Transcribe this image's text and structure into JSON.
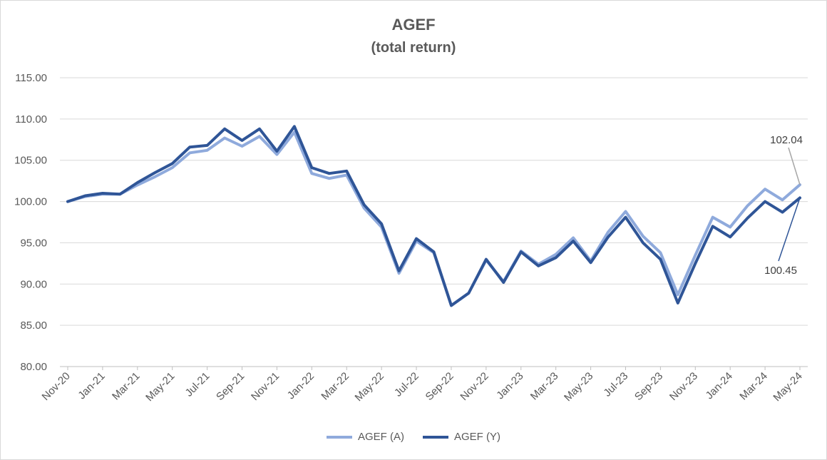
{
  "chart_data": {
    "type": "line",
    "title": "AGEF",
    "subtitle": "(total return)",
    "ylim": [
      80,
      115
    ],
    "yticks": [
      "80.00",
      "85.00",
      "90.00",
      "95.00",
      "100.00",
      "105.00",
      "110.00",
      "115.00"
    ],
    "grid": true,
    "legend_position": "bottom",
    "x": [
      "Nov-20",
      "Dec-20",
      "Jan-21",
      "Feb-21",
      "Mar-21",
      "Apr-21",
      "May-21",
      "Jun-21",
      "Jul-21",
      "Aug-21",
      "Sep-21",
      "Oct-21",
      "Nov-21",
      "Dec-21",
      "Jan-22",
      "Feb-22",
      "Mar-22",
      "Apr-22",
      "May-22",
      "Jun-22",
      "Jul-22",
      "Aug-22",
      "Sep-22",
      "Oct-22",
      "Nov-22",
      "Dec-22",
      "Jan-23",
      "Feb-23",
      "Mar-23",
      "Apr-23",
      "May-23",
      "Jun-23",
      "Jul-23",
      "Aug-23",
      "Sep-23",
      "Oct-23",
      "Nov-23",
      "Dec-23",
      "Jan-24",
      "Feb-24",
      "Mar-24",
      "Apr-24",
      "May-24"
    ],
    "xtick_labels": [
      "Nov-20",
      "Jan-21",
      "Mar-21",
      "May-21",
      "Jul-21",
      "Sep-21",
      "Nov-21",
      "Jan-22",
      "Mar-22",
      "May-22",
      "Jul-22",
      "Sep-22",
      "Nov-22",
      "Jan-23",
      "Mar-23",
      "May-23",
      "Jul-23",
      "Sep-23",
      "Nov-23",
      "Jan-24",
      "Mar-24",
      "May-24"
    ],
    "series": [
      {
        "name": "AGEF (A)",
        "color": "#8faadc",
        "values": [
          100.0,
          100.6,
          100.9,
          100.9,
          102.0,
          103.0,
          104.1,
          105.9,
          106.2,
          107.7,
          106.7,
          107.9,
          105.7,
          108.4,
          103.4,
          102.8,
          103.2,
          99.2,
          96.9,
          91.3,
          95.2,
          93.8,
          87.4,
          88.9,
          92.9,
          90.3,
          94.0,
          92.4,
          93.6,
          95.6,
          92.8,
          96.3,
          98.8,
          95.8,
          93.8,
          88.7,
          93.5,
          98.1,
          96.9,
          99.5,
          101.5,
          100.2,
          102.04
        ]
      },
      {
        "name": "AGEF (Y)",
        "color": "#2f5597",
        "values": [
          100.0,
          100.7,
          101.0,
          100.9,
          102.3,
          103.5,
          104.6,
          106.6,
          106.8,
          108.8,
          107.4,
          108.8,
          106.1,
          109.1,
          104.1,
          103.4,
          103.7,
          99.6,
          97.3,
          91.6,
          95.5,
          93.9,
          87.4,
          88.9,
          93.0,
          90.2,
          93.9,
          92.2,
          93.2,
          95.2,
          92.6,
          95.7,
          98.1,
          95.0,
          93.0,
          87.7,
          92.5,
          97.0,
          95.7,
          98.0,
          100.0,
          98.7,
          100.45
        ]
      }
    ],
    "annotations": [
      {
        "text": "102.04",
        "series": 0,
        "point": 42
      },
      {
        "text": "100.45",
        "series": 1,
        "point": 42
      }
    ]
  }
}
